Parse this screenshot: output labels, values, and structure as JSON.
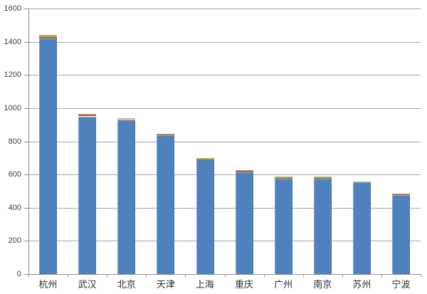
{
  "chart_data": {
    "type": "bar",
    "stacked": true,
    "title": "",
    "xlabel": "",
    "ylabel": "",
    "legend": "none",
    "grid": true,
    "background": "#ffffff",
    "categories": [
      "杭州",
      "武汉",
      "北京",
      "天津",
      "上海",
      "重庆",
      "广州",
      "南京",
      "苏州",
      "宁波"
    ],
    "series": [
      {
        "color_name": "blue",
        "color": "#4F81BD",
        "values": [
          1420,
          950,
          928,
          835,
          690,
          615,
          576,
          574,
          552,
          477
        ]
      },
      {
        "color_name": "red",
        "color": "#C0504D",
        "values": [
          10,
          10,
          5,
          4,
          2,
          9,
          4,
          6,
          5,
          4
        ]
      },
      {
        "color_name": "green",
        "color": "#9BBB59",
        "values": [
          12,
          5,
          8,
          7,
          8,
          3,
          6,
          6,
          2,
          6
        ]
      }
    ],
    "totals_estimated": [
      1442,
      965,
      941,
      846,
      700,
      627,
      586,
      586,
      559,
      487
    ],
    "ylim": [
      0,
      1600
    ],
    "ytick_step": 200,
    "ytick_labels": [
      "0",
      "200",
      "400",
      "600",
      "800",
      "1000",
      "1200",
      "1400",
      "1600"
    ],
    "axis_colors": {
      "gridline": "#A6A6A6",
      "axis_line": "#8E8E8E",
      "tick_label": "#3F3F3F"
    }
  }
}
